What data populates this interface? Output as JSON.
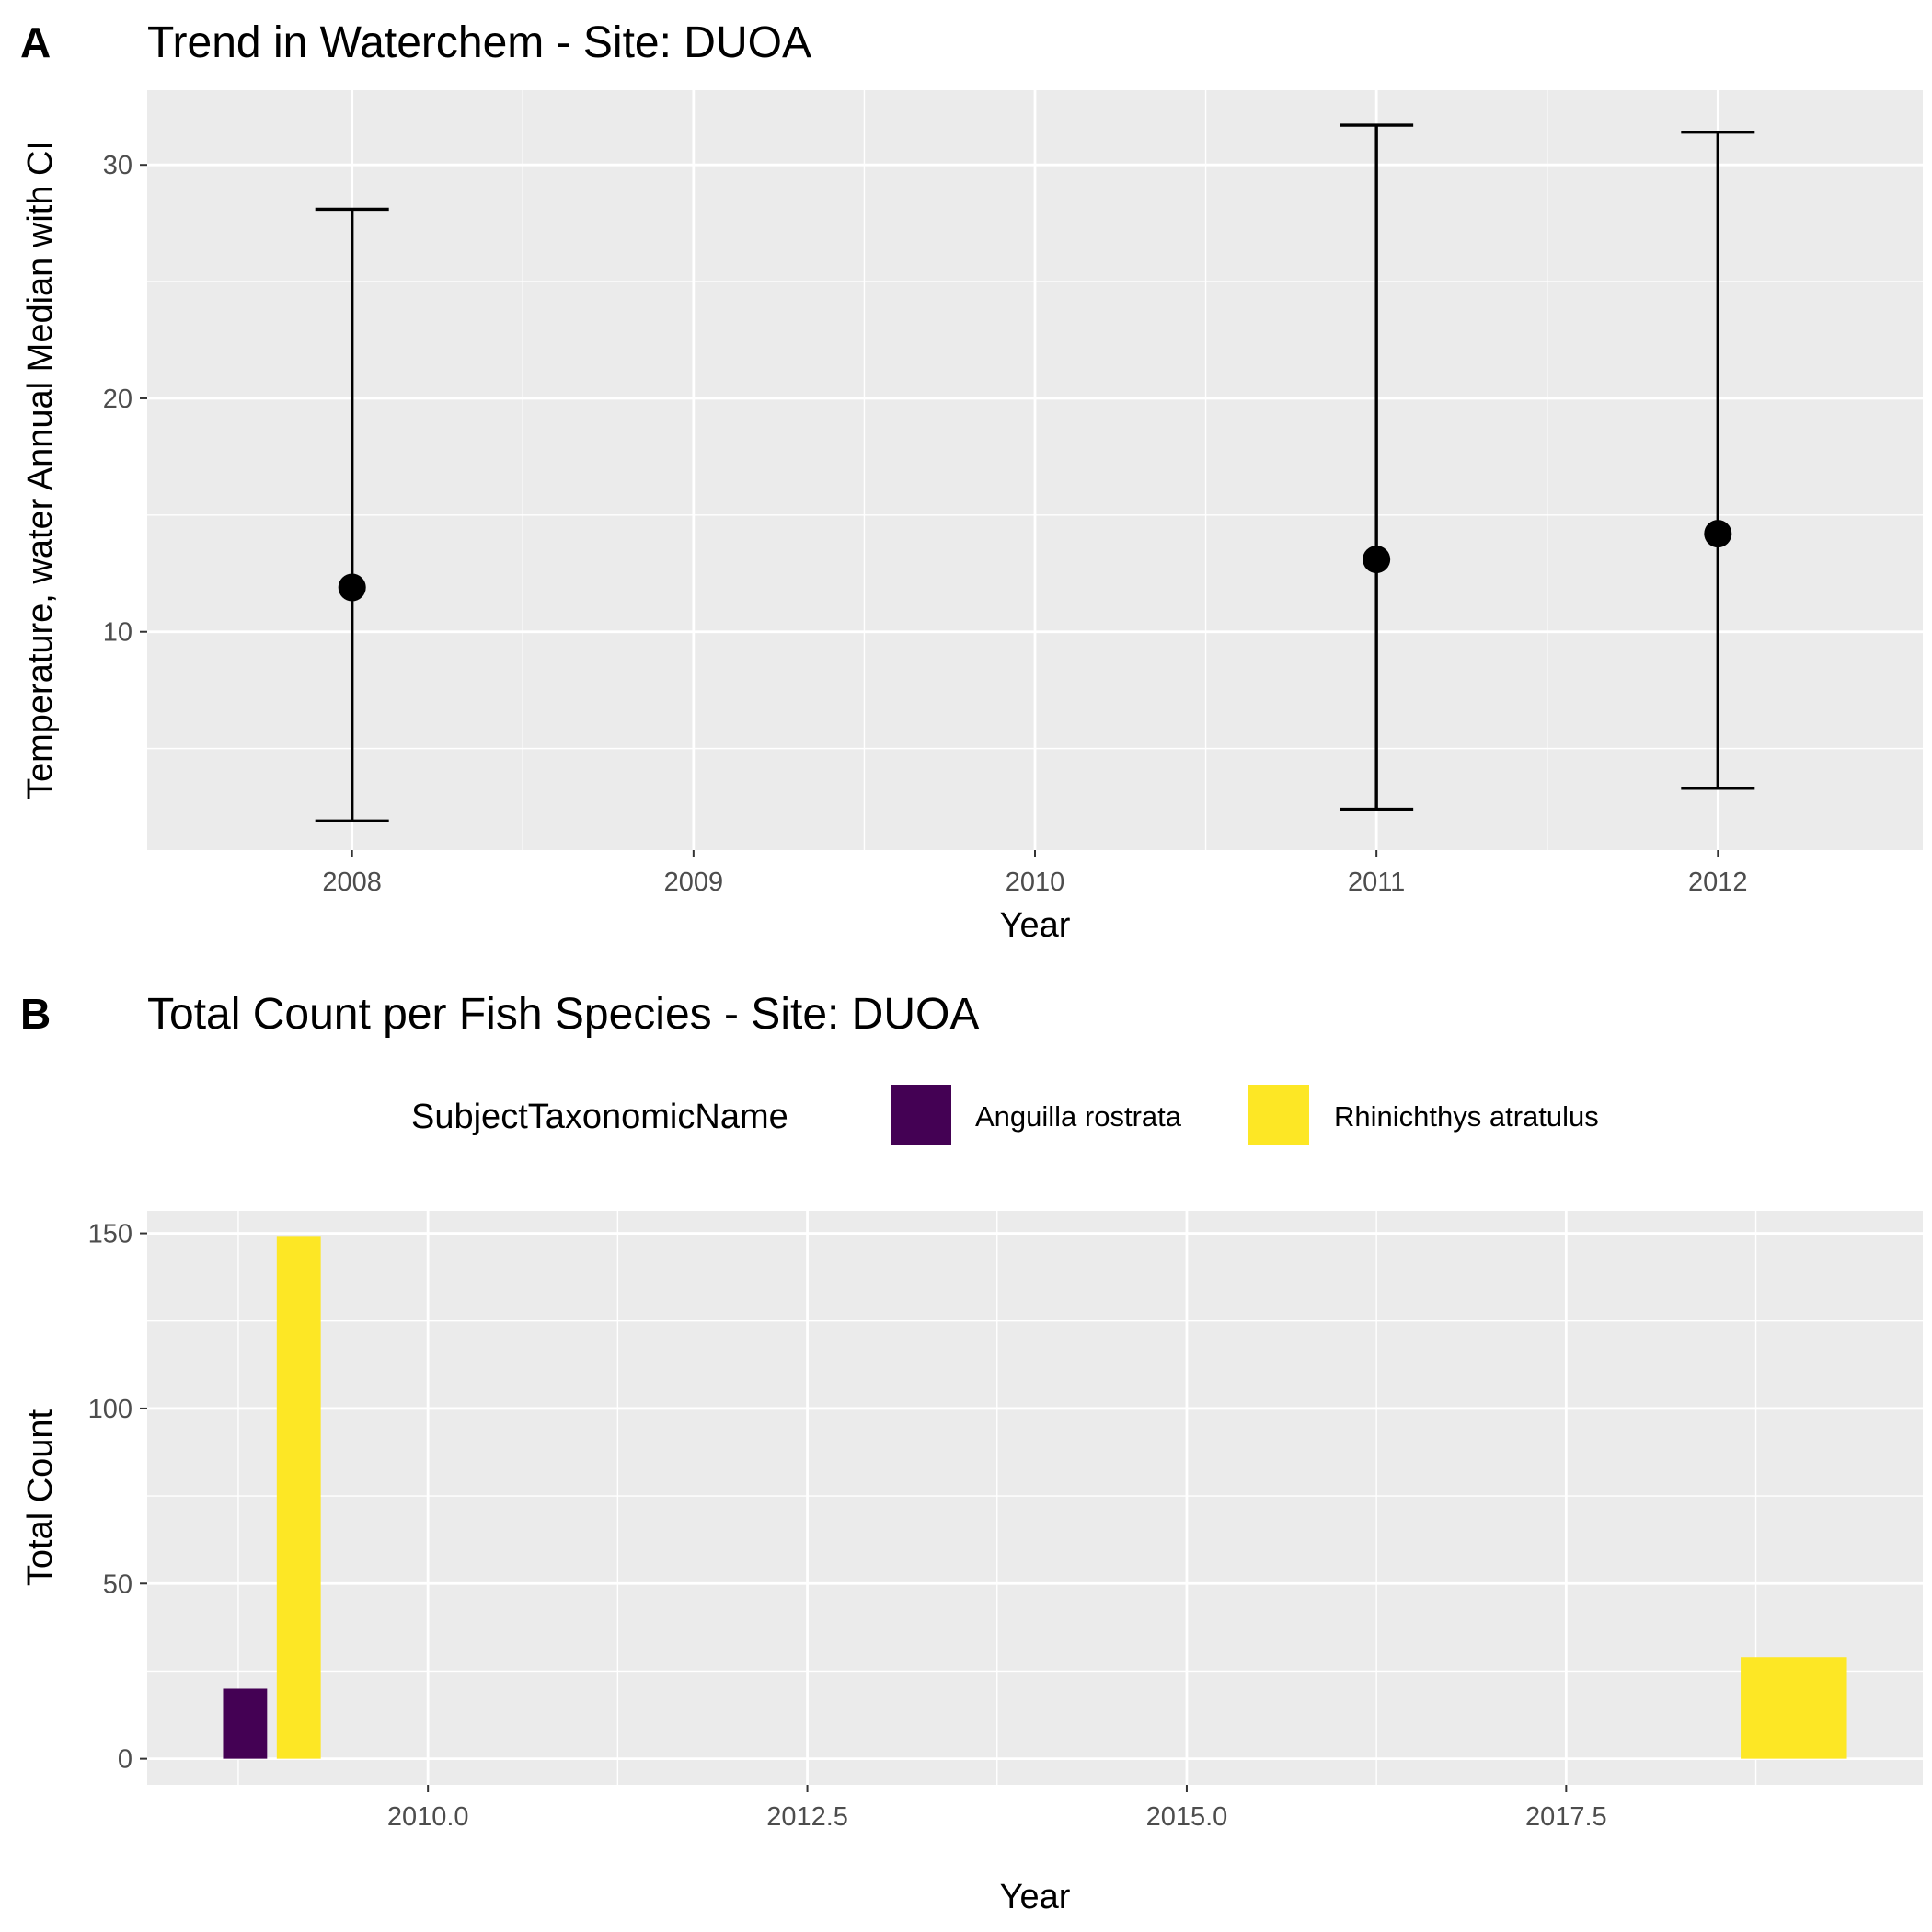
{
  "chart_data": [
    {
      "panel_label": "A",
      "type": "scatter",
      "title": "Trend in Waterchem - Site: DUOA",
      "xlabel": "Year",
      "ylabel": "Temperature, water Annual Median with CI",
      "categories": [
        "2008",
        "2009",
        "2010",
        "2011",
        "2012"
      ],
      "points": [
        {
          "x": "2008",
          "median": 11.9,
          "lower": 1.9,
          "upper": 28.1
        },
        {
          "x": "2011",
          "median": 13.1,
          "lower": 2.4,
          "upper": 31.7
        },
        {
          "x": "2012",
          "median": 14.2,
          "lower": 3.3,
          "upper": 31.4
        }
      ],
      "ylim": [
        0.65,
        33.2
      ],
      "yticks": [
        10,
        20,
        30
      ],
      "yticks_minor": [
        5,
        15,
        25
      ],
      "grid": true,
      "colors": {
        "panel_bg": "#ebebeb",
        "grid": "#ffffff",
        "mark": "#000000"
      }
    },
    {
      "panel_label": "B",
      "type": "bar",
      "title": "Total Count per Fish Species - Site: DUOA",
      "xlabel": "Year",
      "ylabel": "Total Count",
      "legend": {
        "title": "SubjectTaxonomicName",
        "position": "top",
        "entries": [
          {
            "name": "Anguilla rostrata",
            "color": "#440154"
          },
          {
            "name": "Rhinichthys atratulus",
            "color": "#fde725"
          }
        ]
      },
      "series": [
        {
          "name": "Anguilla rostrata",
          "color": "#440154",
          "points": [
            {
              "x": 2009,
              "value": 20
            }
          ]
        },
        {
          "name": "Rhinichthys atratulus",
          "color": "#fde725",
          "points": [
            {
              "x": 2009,
              "value": 149
            },
            {
              "x": 2019,
              "value": 29
            }
          ]
        }
      ],
      "dodge_groups": {
        "2009": 2,
        "2019": 1
      },
      "bar_width_years": 0.7,
      "xlim": [
        2008.15,
        2019.85
      ],
      "xticks": [
        2010.0,
        2012.5,
        2015.0,
        2017.5
      ],
      "xtick_labels": [
        "2010.0",
        "2012.5",
        "2015.0",
        "2017.5"
      ],
      "xticks_minor": [
        2008.75,
        2011.25,
        2013.75,
        2016.25,
        2018.75
      ],
      "ylim": [
        -7.45,
        156.45
      ],
      "yticks": [
        0,
        50,
        100,
        150
      ],
      "yticks_minor": [
        25,
        75,
        125
      ],
      "grid": true,
      "colors": {
        "panel_bg": "#ebebeb",
        "grid": "#ffffff"
      }
    }
  ]
}
